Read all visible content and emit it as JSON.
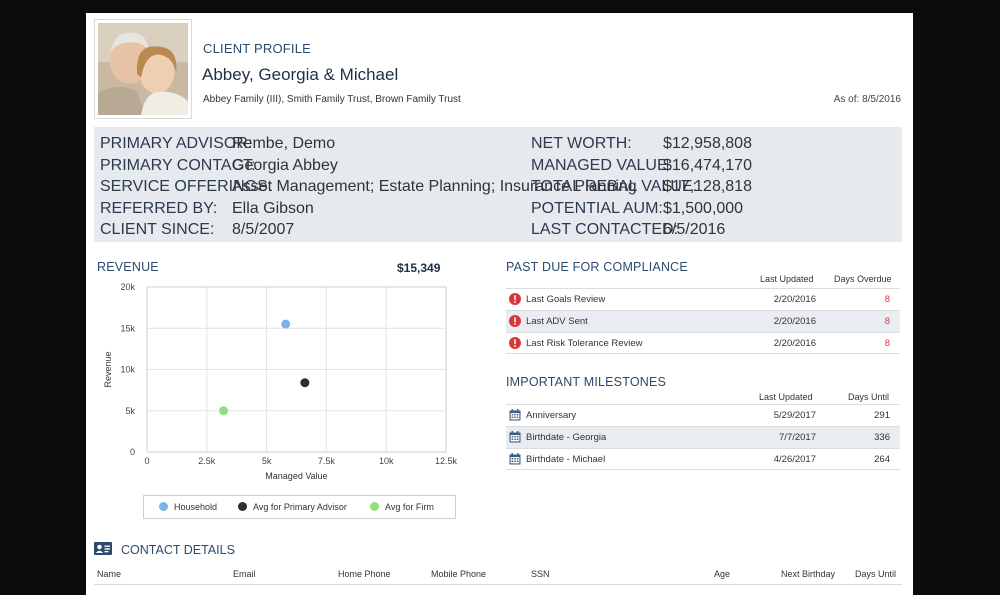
{
  "header": {
    "eyebrow": "CLIENT PROFILE",
    "client_name": "Abbey, Georgia & Michael",
    "entities": "Abbey Family (III), Smith Family Trust, Brown Family Trust",
    "as_of": "As of: 8/5/2016"
  },
  "info_left": [
    {
      "label": "PRIMARY ADVISOR:",
      "value": "Rembe, Demo"
    },
    {
      "label": "PRIMARY CONTACT:",
      "value": "Georgia Abbey"
    },
    {
      "label": "SERVICE OFFERINGS:",
      "value": "Asset Management; Estate Planning; Insurance Planning"
    },
    {
      "label": "REFERRED BY:",
      "value": "Ella Gibson"
    },
    {
      "label": "CLIENT SINCE:",
      "value": "8/5/2007"
    }
  ],
  "info_right": [
    {
      "label": "NET WORTH:",
      "value": "$12,958,808"
    },
    {
      "label": "MANAGED VALUE:",
      "value": "$16,474,170"
    },
    {
      "label": "TOTAL REBAL VALUE:",
      "value": "$17,128,818"
    },
    {
      "label": "POTENTIAL AUM:",
      "value": "$1,500,000"
    },
    {
      "label": "LAST CONTACTED:",
      "value": "6/5/2016"
    }
  ],
  "revenue": {
    "title": "REVENUE",
    "total": "$15,349"
  },
  "chart_data": {
    "type": "scatter",
    "xlabel": "Managed Value",
    "ylabel": "Revenue",
    "xlim": [
      0,
      12500
    ],
    "ylim": [
      0,
      20000
    ],
    "x_ticks": [
      "0",
      "2.5k",
      "5k",
      "7.5k",
      "10k",
      "12.5k"
    ],
    "y_ticks": [
      "0",
      "5k",
      "10k",
      "15k",
      "20k"
    ],
    "grid": true,
    "legend_position": "bottom",
    "series": [
      {
        "name": "Household",
        "color": "#7fb2e5",
        "points": [
          {
            "x": 5800,
            "y": 15500
          }
        ]
      },
      {
        "name": "Avg for Primary Advisor",
        "color": "#2f2f2f",
        "points": [
          {
            "x": 6600,
            "y": 8400
          }
        ]
      },
      {
        "name": "Avg for Firm",
        "color": "#8fe07a",
        "points": [
          {
            "x": 3200,
            "y": 5000
          }
        ]
      }
    ]
  },
  "compliance": {
    "title": "PAST DUE FOR COMPLIANCE",
    "col_updated": "Last Updated",
    "col_days": "Days Overdue",
    "icon": "alert-circle-icon",
    "rows": [
      {
        "name": "Last Goals Review",
        "updated": "2/20/2016",
        "days": "8"
      },
      {
        "name": "Last ADV Sent",
        "updated": "2/20/2016",
        "days": "8"
      },
      {
        "name": "Last Risk Tolerance Review",
        "updated": "2/20/2016",
        "days": "8"
      }
    ]
  },
  "milestones": {
    "title": "IMPORTANT MILESTONES",
    "col_updated": "Last Updated",
    "col_days": "Days Until",
    "icon": "calendar-icon",
    "rows": [
      {
        "name": "Anniversary",
        "updated": "5/29/2017",
        "days": "291"
      },
      {
        "name": "Birthdate - Georgia",
        "updated": "7/7/2017",
        "days": "336"
      },
      {
        "name": "Birthdate - Michael",
        "updated": "4/26/2017",
        "days": "264"
      }
    ]
  },
  "contact": {
    "title": "CONTACT DETAILS",
    "icon": "contact-card-icon",
    "columns": [
      "Name",
      "Email",
      "Home Phone",
      "Mobile Phone",
      "SSN",
      "Age",
      "Next Birthday",
      "Days Until"
    ]
  },
  "colors": {
    "accent": "#2c4a6e",
    "panel_bg": "#e6e9ee",
    "alert_red": "#d9383a",
    "calendar_blue": "#3b5b86"
  }
}
